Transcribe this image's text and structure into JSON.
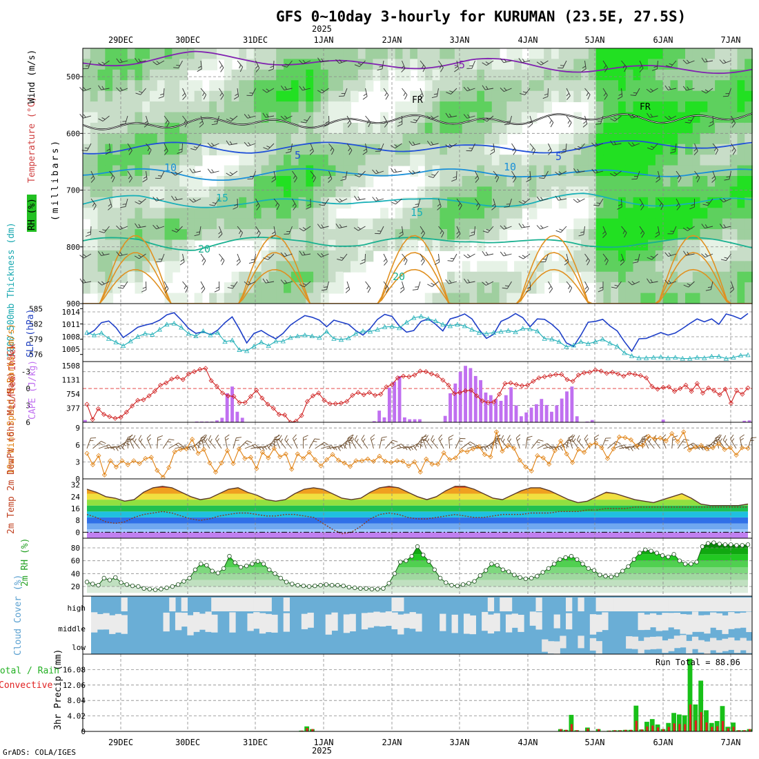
{
  "chart_data": {
    "type": "meteogram",
    "title": "GFS 0~10day 3-hourly for KURUMAN (23.5E, 27.5S)",
    "year_label": "2025",
    "credit": "GrADS: COLA/IGES",
    "x_labels": [
      "29DEC",
      "30DEC",
      "31DEC",
      "1JAN",
      "2JAN",
      "3JAN",
      "4JAN",
      "5JAN",
      "6JAN",
      "7JAN"
    ],
    "colors": {
      "rh_green": "#22d022",
      "slp": "#1e3fc8",
      "thick": "#22b0b8",
      "li": "#d02020",
      "cape": "#c070f0",
      "wind": "#e08010",
      "temp": "#e05010",
      "rh2m": "#22c022",
      "cloud": "#6aaed6",
      "precip": "#18c018",
      "conv": "#e02020"
    },
    "panels": {
      "upper_air": {
        "ylabel_rh": "RH (%)",
        "ylabel_temp": "Temperature (°C)",
        "ylabel_wind": "Wind (m/s)",
        "ylabel_p": "(millibars)",
        "yticks": [
          "500",
          "600",
          "700",
          "800",
          "900"
        ],
        "contour_labels": [
          "-5",
          "5",
          "10",
          "15",
          "20",
          "FR"
        ],
        "isotherms": [
          {
            "label": "-5",
            "values": [
              -5.5,
              -5.8,
              -6.2,
              -6.0,
              -5.5,
              -5.2,
              -5.4,
              -5.6,
              -5.3,
              -5.0,
              -4.8,
              -4.9,
              -5.0
            ]
          },
          {
            "label": "5",
            "values": [
              5.2,
              5.0,
              4.9,
              5.1,
              5.0,
              4.8,
              5.0,
              5.2,
              5.1,
              5.0,
              4.7,
              4.6,
              4.8
            ]
          },
          {
            "label": "10",
            "values": [
              9.8,
              10.0,
              10.3,
              10.2,
              10.0,
              9.7,
              10.1,
              10.0,
              9.9,
              10.2,
              10.0,
              9.8,
              10.1
            ]
          },
          {
            "label": "15",
            "values": [
              15.2,
              14.8,
              15.1,
              15.4,
              15.0,
              14.7,
              15.2,
              15.0,
              15.1,
              14.6,
              14.9,
              15.3,
              15.0
            ]
          },
          {
            "label": "20",
            "values": [
              20.3,
              19.8,
              20.6,
              20.1,
              19.7,
              20.4,
              20.0,
              19.6,
              20.2,
              20.5,
              19.9,
              20.1,
              20.4
            ]
          }
        ]
      },
      "slp": {
        "ylabel_thick": "1000-500mb Thickness (dm)",
        "ylabel_slp": "SLP (hPa)",
        "thickness_ticks": [
          "585",
          "582",
          "579",
          "576"
        ],
        "slp_ticks": [
          "1014",
          "1011",
          "1008",
          "1005"
        ],
        "slp": [
          1008.5,
          1009.5,
          1011.4,
          1011.8,
          1010.2,
          1007.8,
          1009.0,
          1010.3,
          1010.8,
          1011.2,
          1012.0,
          1013.3,
          1013.8,
          1012.0,
          1010.0,
          1008.8,
          1009.2,
          1008.5,
          1009.6,
          1011.4,
          1012.8,
          1009.8,
          1006.5,
          1008.8,
          1009.5,
          1008.4,
          1007.5,
          1008.8,
          1010.8,
          1012.0,
          1013.1,
          1012.7,
          1012.0,
          1010.4,
          1012.0,
          1011.5,
          1011.0,
          1009.5,
          1008.4,
          1010.0,
          1012.2,
          1013.4,
          1012.9,
          1010.6,
          1009.1,
          1009.5,
          1011.7,
          1012.3,
          1011.0,
          1009.4,
          1012.3,
          1012.8,
          1013.5,
          1012.3,
          1009.7,
          1007.6,
          1008.6,
          1011.7,
          1012.5,
          1013.6,
          1012.6,
          1010.4,
          1012.3,
          1012.2,
          1011.0,
          1009.4,
          1006.5,
          1005.7,
          1008.4,
          1011.5,
          1011.7,
          1012.2,
          1010.6,
          1009.4,
          1006.8,
          1004.5,
          1007.5,
          1007.6,
          1008.3,
          1009.0,
          1008.4,
          1008.9,
          1010.0,
          1011.2,
          1012.3,
          1011.6,
          1012.3,
          1011.0,
          1013.5,
          1013.0,
          1012.3,
          1013.6
        ],
        "thickness": [
          580.3,
          579.8,
          580.2,
          579.1,
          578.4,
          577.7,
          578.6,
          579.5,
          580.1,
          579.9,
          580.9,
          581.9,
          582.1,
          581.3,
          580.1,
          579.6,
          580.6,
          579.8,
          580.3,
          578.5,
          578.8,
          576.9,
          576.7,
          577.6,
          578.4,
          577.7,
          578.6,
          578.6,
          579.3,
          579.6,
          579.8,
          579.6,
          579.3,
          580.5,
          579.1,
          578.9,
          579.2,
          580.1,
          580.6,
          580.5,
          580.9,
          581.4,
          581.5,
          581.2,
          582.3,
          583.2,
          583.5,
          583.0,
          582.6,
          581.9,
          581.6,
          581.9,
          581.6,
          580.9,
          580.3,
          580.1,
          580.3,
          580.5,
          580.7,
          580.4,
          581.1,
          581.0,
          580.6,
          579.1,
          579.0,
          578.5,
          577.5,
          577.8,
          578.5,
          578.1,
          578.5,
          579.0,
          578.2,
          577.6,
          576.3,
          575.7,
          575.3,
          575.3,
          575.4,
          575.5,
          575.3,
          575.4,
          575.2,
          575.2,
          575.4,
          575.3,
          575.6,
          575.6,
          575.2,
          575.4,
          575.8,
          575.9
        ]
      },
      "cape": {
        "ylabel_li": "Lifted Index",
        "ylabel_cape": "CAPE (J/kg)",
        "li_ticks": [
          "-3",
          "0",
          "3",
          "6"
        ],
        "cape_ticks": [
          "1508",
          "1131",
          "754",
          "377"
        ],
        "cape": [
          60,
          0,
          0,
          0,
          0,
          0,
          0,
          0,
          0,
          0,
          0,
          0,
          0,
          0,
          0,
          0,
          0,
          0,
          0,
          0,
          0,
          0,
          20,
          20,
          20,
          20,
          50,
          120,
          770,
          950,
          280,
          120,
          0,
          0,
          0,
          0,
          0,
          0,
          0,
          0,
          0,
          0,
          0,
          0,
          0,
          0,
          0,
          0,
          0,
          0,
          0,
          0,
          0,
          0,
          0,
          0,
          0,
          30,
          310,
          130,
          920,
          1080,
          1230,
          130,
          80,
          80,
          80,
          0,
          0,
          0,
          0,
          170,
          770,
          1030,
          1340,
          1500,
          1440,
          1230,
          1120,
          790,
          720,
          620,
          570,
          720,
          930,
          450,
          160,
          260,
          390,
          480,
          620,
          460,
          280,
          450,
          630,
          820,
          950,
          160,
          0,
          20,
          60,
          0,
          0,
          0,
          0,
          0,
          0,
          0,
          0,
          0,
          0,
          0,
          0,
          0,
          70,
          0,
          0,
          0,
          0,
          0,
          0,
          0,
          0,
          0,
          0,
          0,
          0,
          0,
          0,
          0,
          40,
          50
        ],
        "li": [
          2.8,
          5.5,
          3.6,
          4.6,
          5.0,
          5.3,
          5.1,
          4.2,
          3.1,
          2.1,
          2.0,
          1.3,
          0.5,
          -0.6,
          -1.0,
          -1.7,
          -2.0,
          -1.6,
          -2.6,
          -3.0,
          -3.4,
          -3.6,
          -1.4,
          -0.4,
          0.8,
          1.3,
          1.4,
          2.5,
          2.5,
          1.4,
          0.3,
          1.7,
          2.8,
          3.5,
          4.6,
          4.7,
          6.0,
          5.8,
          4.8,
          2.3,
          1.3,
          0.8,
          2.1,
          2.7,
          2.7,
          2.6,
          2.3,
          1.2,
          0.7,
          1.1,
          0.7,
          1.2,
          1.0,
          -0.3,
          -0.7,
          -1.9,
          -2.2,
          -2.1,
          -2.4,
          -3.1,
          -3.0,
          -2.6,
          -2.3,
          -1.5,
          -0.6,
          0.9,
          0.7,
          0.4,
          0.3,
          1.3,
          2.2,
          2.5,
          2.4,
          1.0,
          -0.9,
          -1.0,
          -0.7,
          -0.5,
          -0.6,
          -1.3,
          -1.9,
          -2.1,
          -2.3,
          -2.5,
          -2.5,
          -1.6,
          -1.3,
          -2.4,
          -2.8,
          -2.9,
          -3.3,
          -3.1,
          -2.7,
          -2.9,
          -2.6,
          -2.2,
          -2.7,
          -2.5,
          -2.3,
          -1.9,
          -0.4,
          0.1,
          -0.2,
          -0.3,
          0.5,
          0.0,
          -0.6,
          0.5,
          -0.9,
          0.8,
          -0.1,
          0.4,
          1.1,
          0.1,
          2.6,
          0.4,
          1.0,
          -0.1
        ]
      },
      "wind": {
        "ylabel": "10m Wind Speed & Barbs (m/s)",
        "yticks": [
          "9",
          "6",
          "3",
          "0"
        ],
        "speed": [
          4.5,
          2.5,
          4.1,
          0.7,
          3.2,
          2.1,
          3.2,
          2.5,
          3.2,
          2.7,
          3.6,
          3.8,
          1.5,
          0.3,
          2.0,
          4.8,
          5.2,
          5.3,
          7.0,
          4.5,
          5.2,
          2.8,
          1.2,
          2.8,
          5.0,
          2.7,
          5.3,
          3.6,
          3.8,
          1.8,
          4.7,
          3.7,
          5.4,
          3.9,
          4.4,
          1.7,
          4.4,
          3.6,
          4.7,
          3.4,
          2.3,
          3.4,
          4.3,
          3.3,
          2.8,
          2.2,
          3.2,
          3.2,
          3.5,
          3.1,
          4.0,
          3.1,
          2.9,
          3.2,
          3.1,
          2.3,
          3.0,
          1.2,
          3.5,
          2.6,
          2.6,
          4.6,
          3.4,
          3.7,
          5.0,
          4.8,
          5.3,
          5.7,
          4.3,
          3.9,
          8.3,
          4.9,
          5.9,
          5.4,
          3.3,
          2.1,
          1.4,
          4.1,
          3.7,
          2.6,
          5.0,
          6.7,
          4.4,
          2.9,
          5.2,
          4.7,
          6.0,
          6.3,
          5.5,
          3.6,
          5.3,
          7.4,
          7.3,
          6.9,
          5.8,
          5.9,
          7.5,
          7.1,
          7.2,
          6.7,
          8.0,
          6.6,
          8.3,
          5.1,
          5.6,
          5.9,
          5.3,
          5.5,
          6.2,
          5.2,
          5.5,
          4.2,
          5.5,
          5.4
        ]
      },
      "temp": {
        "ylabel": "2m Temp 2m DewPt (6hr Min/Max) (°C)",
        "yticks": [
          "32",
          "24",
          "16",
          "8",
          "0"
        ],
        "temp": [
          29,
          27,
          24,
          23,
          21,
          22,
          27,
          30,
          31,
          30,
          27,
          24,
          22,
          23,
          26,
          29,
          30,
          27,
          25,
          22,
          21,
          22,
          26,
          29,
          30,
          29,
          26,
          23,
          22,
          23,
          27,
          30,
          31,
          30,
          27,
          24,
          22,
          24,
          28,
          31,
          31,
          29,
          26,
          23,
          22,
          25,
          28,
          30,
          30,
          28,
          25,
          22,
          20,
          21,
          24,
          27,
          26,
          24,
          22,
          21,
          20,
          22,
          24,
          26,
          23,
          19,
          18,
          18,
          18,
          18,
          19
        ],
        "dewpt": [
          12,
          10,
          7,
          6,
          7,
          10,
          12,
          13,
          14,
          13,
          11,
          9,
          8,
          9,
          11,
          12,
          13,
          13,
          12,
          11,
          11,
          12,
          12,
          11,
          10,
          6,
          2,
          -1,
          0,
          4,
          9,
          12,
          13,
          12,
          10,
          9,
          9,
          10,
          11,
          12,
          11,
          10,
          10,
          11,
          12,
          12,
          12,
          13,
          13,
          13,
          14,
          14,
          14,
          15,
          15,
          16,
          16,
          16,
          17,
          17,
          17,
          17,
          17,
          17,
          17,
          17,
          17,
          17,
          17,
          17,
          17
        ]
      },
      "rh2m": {
        "ylabel": "2m RH (%)",
        "yticks": [
          "80",
          "60",
          "40",
          "20"
        ],
        "rh": [
          27,
          24,
          22,
          33,
          30,
          34,
          26,
          23,
          21,
          20,
          17,
          16,
          15,
          16,
          18,
          20,
          23,
          28,
          33,
          46,
          55,
          53,
          44,
          41,
          48,
          67,
          57,
          50,
          52,
          55,
          59,
          55,
          46,
          40,
          33,
          27,
          24,
          22,
          21,
          20,
          21,
          22,
          23,
          22,
          22,
          21,
          19,
          18,
          17,
          17,
          16,
          16,
          17,
          25,
          40,
          58,
          60,
          67,
          82,
          69,
          59,
          46,
          33,
          26,
          22,
          21,
          23,
          25,
          28,
          37,
          45,
          55,
          53,
          46,
          43,
          38,
          34,
          32,
          33,
          36,
          42,
          48,
          55,
          62,
          65,
          67,
          62,
          55,
          48,
          45,
          38,
          36,
          35,
          38,
          44,
          51,
          62,
          72,
          77,
          75,
          72,
          68,
          66,
          70,
          60,
          55,
          55,
          58,
          82,
          87,
          88,
          86,
          85,
          85,
          84,
          84,
          85
        ]
      },
      "cloud": {
        "ylabel": "Cloud Cover (%)",
        "levels": [
          "high",
          "middle",
          "low"
        ]
      },
      "precip": {
        "ylabel": "3hr Precip (mm)",
        "legend_total": "Total / Rain",
        "legend_conv": "Convective",
        "run_total": "Run Total = 88.06",
        "yticks": [
          "16.08",
          "12.06",
          "8.04",
          "4.02",
          "0"
        ],
        "total": [
          0,
          0,
          0,
          0,
          0,
          0,
          0,
          0,
          0,
          0,
          0,
          0,
          0,
          0,
          0,
          0,
          0,
          0,
          0,
          0,
          0,
          0,
          0,
          0,
          0,
          0,
          0,
          0,
          0,
          0,
          0,
          0,
          0,
          0,
          0,
          0,
          0,
          0,
          0,
          0,
          0.2,
          1.3,
          0.6,
          0,
          0,
          0,
          0,
          0,
          0,
          0,
          0,
          0,
          0,
          0,
          0,
          0,
          0,
          0,
          0,
          0,
          0,
          0,
          0,
          0,
          0,
          0,
          0,
          0,
          0,
          0,
          0,
          0,
          0,
          0,
          0,
          0,
          0,
          0,
          0,
          0,
          0,
          0,
          0,
          0,
          0,
          0,
          0,
          0,
          0.6,
          0.4,
          4.3,
          0.3,
          0,
          1.0,
          0.1,
          0.6,
          0.1,
          0.2,
          0.3,
          0.3,
          0.4,
          0.4,
          6.7,
          0.5,
          2.5,
          3.2,
          1.8,
          0.6,
          2.2,
          4.8,
          4.4,
          4.2,
          18.9,
          7.0,
          13.2,
          5.5,
          2.2,
          2.7,
          6.6,
          1.2,
          2.3,
          0.3,
          0.3,
          0.6
        ]
      }
    }
  }
}
